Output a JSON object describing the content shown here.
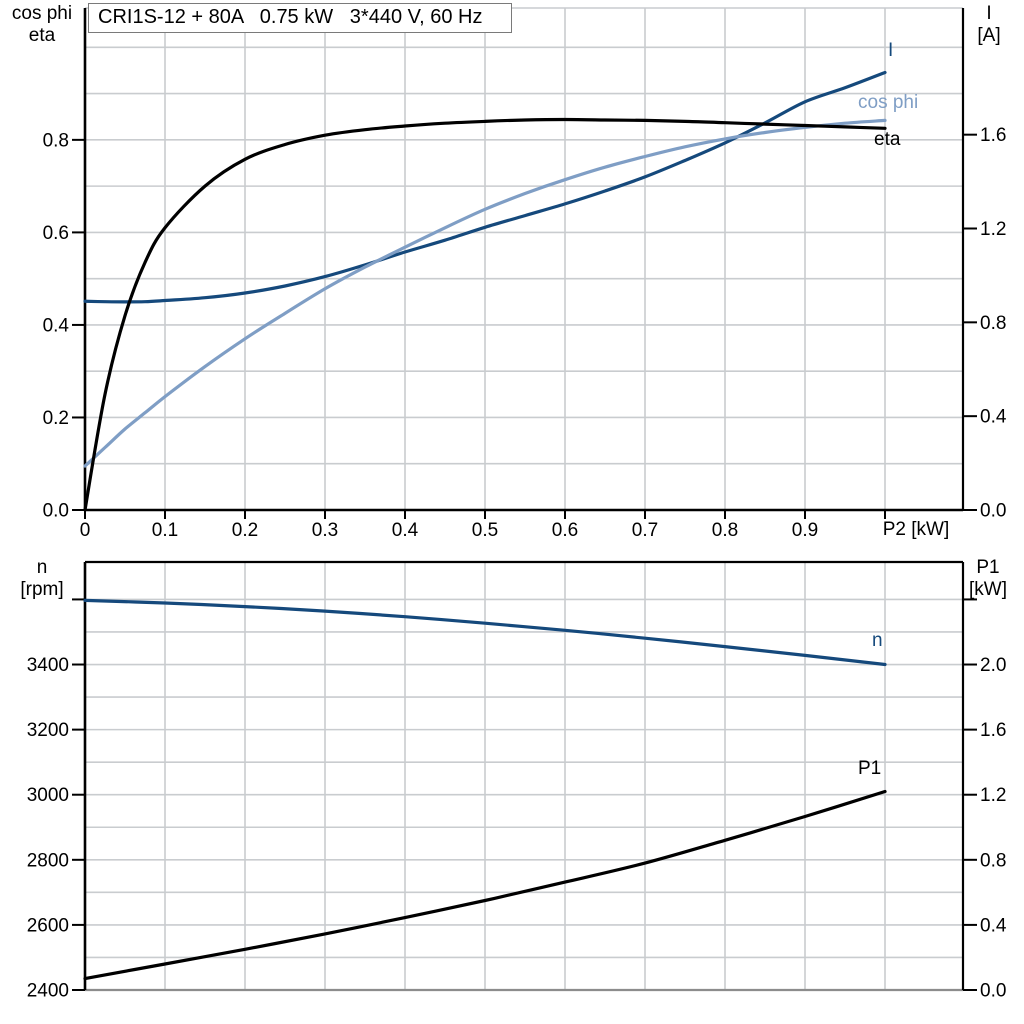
{
  "title_box": {
    "text": "CRI1S-12 + 80A   0.75 kW   3*440 V, 60 Hz"
  },
  "colors": {
    "dark_blue": "#15497c",
    "light_blue": "#7f9ec5",
    "black": "#000000",
    "grid": "#c9cccf",
    "frame": "#000000",
    "muted_frame": "#8c8c8c",
    "background": "#ffffff"
  },
  "chart_data": [
    {
      "type": "line",
      "id": "motor-electrical-curves",
      "title": "CRI1S-12 + 80A   0.75 kW   3*440 V, 60 Hz",
      "grid": true,
      "legend_position": "curve-end-labels",
      "left_axis": {
        "header_line1": "cos phi",
        "header_line2": "eta",
        "range": [
          0,
          1.085
        ],
        "tick_values": [
          0,
          0.2,
          0.4,
          0.6,
          0.8
        ],
        "tick_labels": [
          "0.0",
          "0.2",
          "0.4",
          "0.6",
          "0.8"
        ],
        "extra_ticks": [],
        "minor_step": 0.1,
        "minor_max": 1.0
      },
      "right_axis": {
        "header_line1": "I",
        "header_line2": "[A]",
        "range": [
          0,
          2.14
        ],
        "tick_values": [
          0,
          0.4,
          0.8,
          1.2,
          1.6
        ],
        "tick_labels": [
          "0.0",
          "0.4",
          "0.8",
          "1.2",
          "1.6"
        ],
        "extra_ticks": []
      },
      "x_axis": {
        "label": "P2 [kW]",
        "range": [
          0,
          1.0975
        ],
        "tick_values": [
          0,
          0.1,
          0.2,
          0.3,
          0.4,
          0.5,
          0.6,
          0.7,
          0.8,
          0.9
        ],
        "tick_labels": [
          "0",
          "0.1",
          "0.2",
          "0.3",
          "0.4",
          "0.5",
          "0.6",
          "0.7",
          "0.8",
          "0.9"
        ],
        "extra_ticks": [
          1.0
        ],
        "minor_step": 0.1,
        "minor_max": 1.0,
        "show_tick_labels": true,
        "show_tick_marks": true
      },
      "series": [
        {
          "name": "I",
          "axis": "right",
          "color": "dark_blue",
          "label_pos": [
            888,
            40
          ],
          "x": [
            0,
            0.025,
            0.05,
            0.075,
            0.1,
            0.15,
            0.2,
            0.25,
            0.3,
            0.35,
            0.4,
            0.45,
            0.5,
            0.55,
            0.6,
            0.65,
            0.7,
            0.75,
            0.8,
            0.85,
            0.9,
            0.95,
            1.0
          ],
          "y": [
            0.89,
            0.888,
            0.887,
            0.888,
            0.893,
            0.905,
            0.925,
            0.955,
            0.995,
            1.045,
            1.1,
            1.15,
            1.205,
            1.255,
            1.305,
            1.36,
            1.42,
            1.49,
            1.565,
            1.65,
            1.74,
            1.8,
            1.865
          ]
        },
        {
          "name": "cos phi",
          "axis": "left",
          "color": "light_blue",
          "label_pos": [
            858,
            92
          ],
          "x": [
            0,
            0.025,
            0.05,
            0.075,
            0.1,
            0.15,
            0.2,
            0.25,
            0.3,
            0.35,
            0.4,
            0.45,
            0.5,
            0.55,
            0.6,
            0.65,
            0.7,
            0.75,
            0.8,
            0.85,
            0.9,
            0.95,
            1.0
          ],
          "y": [
            0.095,
            0.135,
            0.175,
            0.21,
            0.245,
            0.31,
            0.37,
            0.425,
            0.478,
            0.525,
            0.568,
            0.61,
            0.65,
            0.684,
            0.714,
            0.741,
            0.764,
            0.785,
            0.802,
            0.816,
            0.827,
            0.836,
            0.842
          ]
        },
        {
          "name": "eta",
          "axis": "left",
          "color": "black",
          "label_pos": [
            874,
            129
          ],
          "x": [
            0,
            0.025,
            0.05,
            0.075,
            0.1,
            0.15,
            0.2,
            0.25,
            0.3,
            0.35,
            0.4,
            0.45,
            0.5,
            0.55,
            0.6,
            0.65,
            0.7,
            0.75,
            0.8,
            0.85,
            0.9,
            0.95,
            1.0
          ],
          "y": [
            0,
            0.25,
            0.42,
            0.535,
            0.61,
            0.7,
            0.758,
            0.79,
            0.81,
            0.822,
            0.83,
            0.836,
            0.84,
            0.843,
            0.844,
            0.843,
            0.842,
            0.84,
            0.837,
            0.834,
            0.831,
            0.828,
            0.825
          ]
        }
      ]
    },
    {
      "type": "line",
      "id": "speed-power-curves",
      "grid": true,
      "legend_position": "curve-end-labels",
      "left_axis": {
        "header_line1": "n",
        "header_line2": "[rpm]",
        "range": [
          2400,
          3715
        ],
        "tick_values": [
          2400,
          2600,
          2800,
          3000,
          3200,
          3400
        ],
        "tick_labels": [
          "2400",
          "2600",
          "2800",
          "3000",
          "3200",
          "3400"
        ],
        "extra_ticks": [
          3600
        ],
        "minor_step": 100,
        "minor_max": 3600
      },
      "right_axis": {
        "header_line1": "P1",
        "header_line2": "[kW]",
        "range": [
          0,
          2.63
        ],
        "tick_values": [
          0,
          0.4,
          0.8,
          1.2,
          1.6,
          2.0
        ],
        "tick_labels": [
          "0.0",
          "0.4",
          "0.8",
          "1.2",
          "1.6",
          "2.0"
        ],
        "extra_ticks": [
          2.4
        ]
      },
      "x_axis": {
        "label": "",
        "range": [
          0,
          1.0975
        ],
        "tick_values": [],
        "tick_labels": [],
        "extra_ticks": [],
        "minor_step": 0.1,
        "minor_max": 1.0,
        "show_tick_labels": false,
        "show_tick_marks": false
      },
      "series": [
        {
          "name": "n",
          "axis": "left",
          "color": "dark_blue",
          "label_pos": [
            872,
            630
          ],
          "x": [
            0,
            0.1,
            0.2,
            0.3,
            0.4,
            0.5,
            0.6,
            0.7,
            0.8,
            0.9,
            1.0
          ],
          "y": [
            3597,
            3589,
            3578,
            3564,
            3547,
            3527,
            3505,
            3481,
            3455,
            3428,
            3400
          ]
        },
        {
          "name": "P1",
          "axis": "right",
          "color": "black",
          "label_pos": [
            858,
            758
          ],
          "x": [
            0,
            0.1,
            0.2,
            0.3,
            0.4,
            0.5,
            0.6,
            0.7,
            0.8,
            0.9,
            1.0
          ],
          "y": [
            0.07,
            0.16,
            0.25,
            0.345,
            0.445,
            0.55,
            0.663,
            0.78,
            0.92,
            1.066,
            1.22
          ]
        }
      ]
    }
  ]
}
